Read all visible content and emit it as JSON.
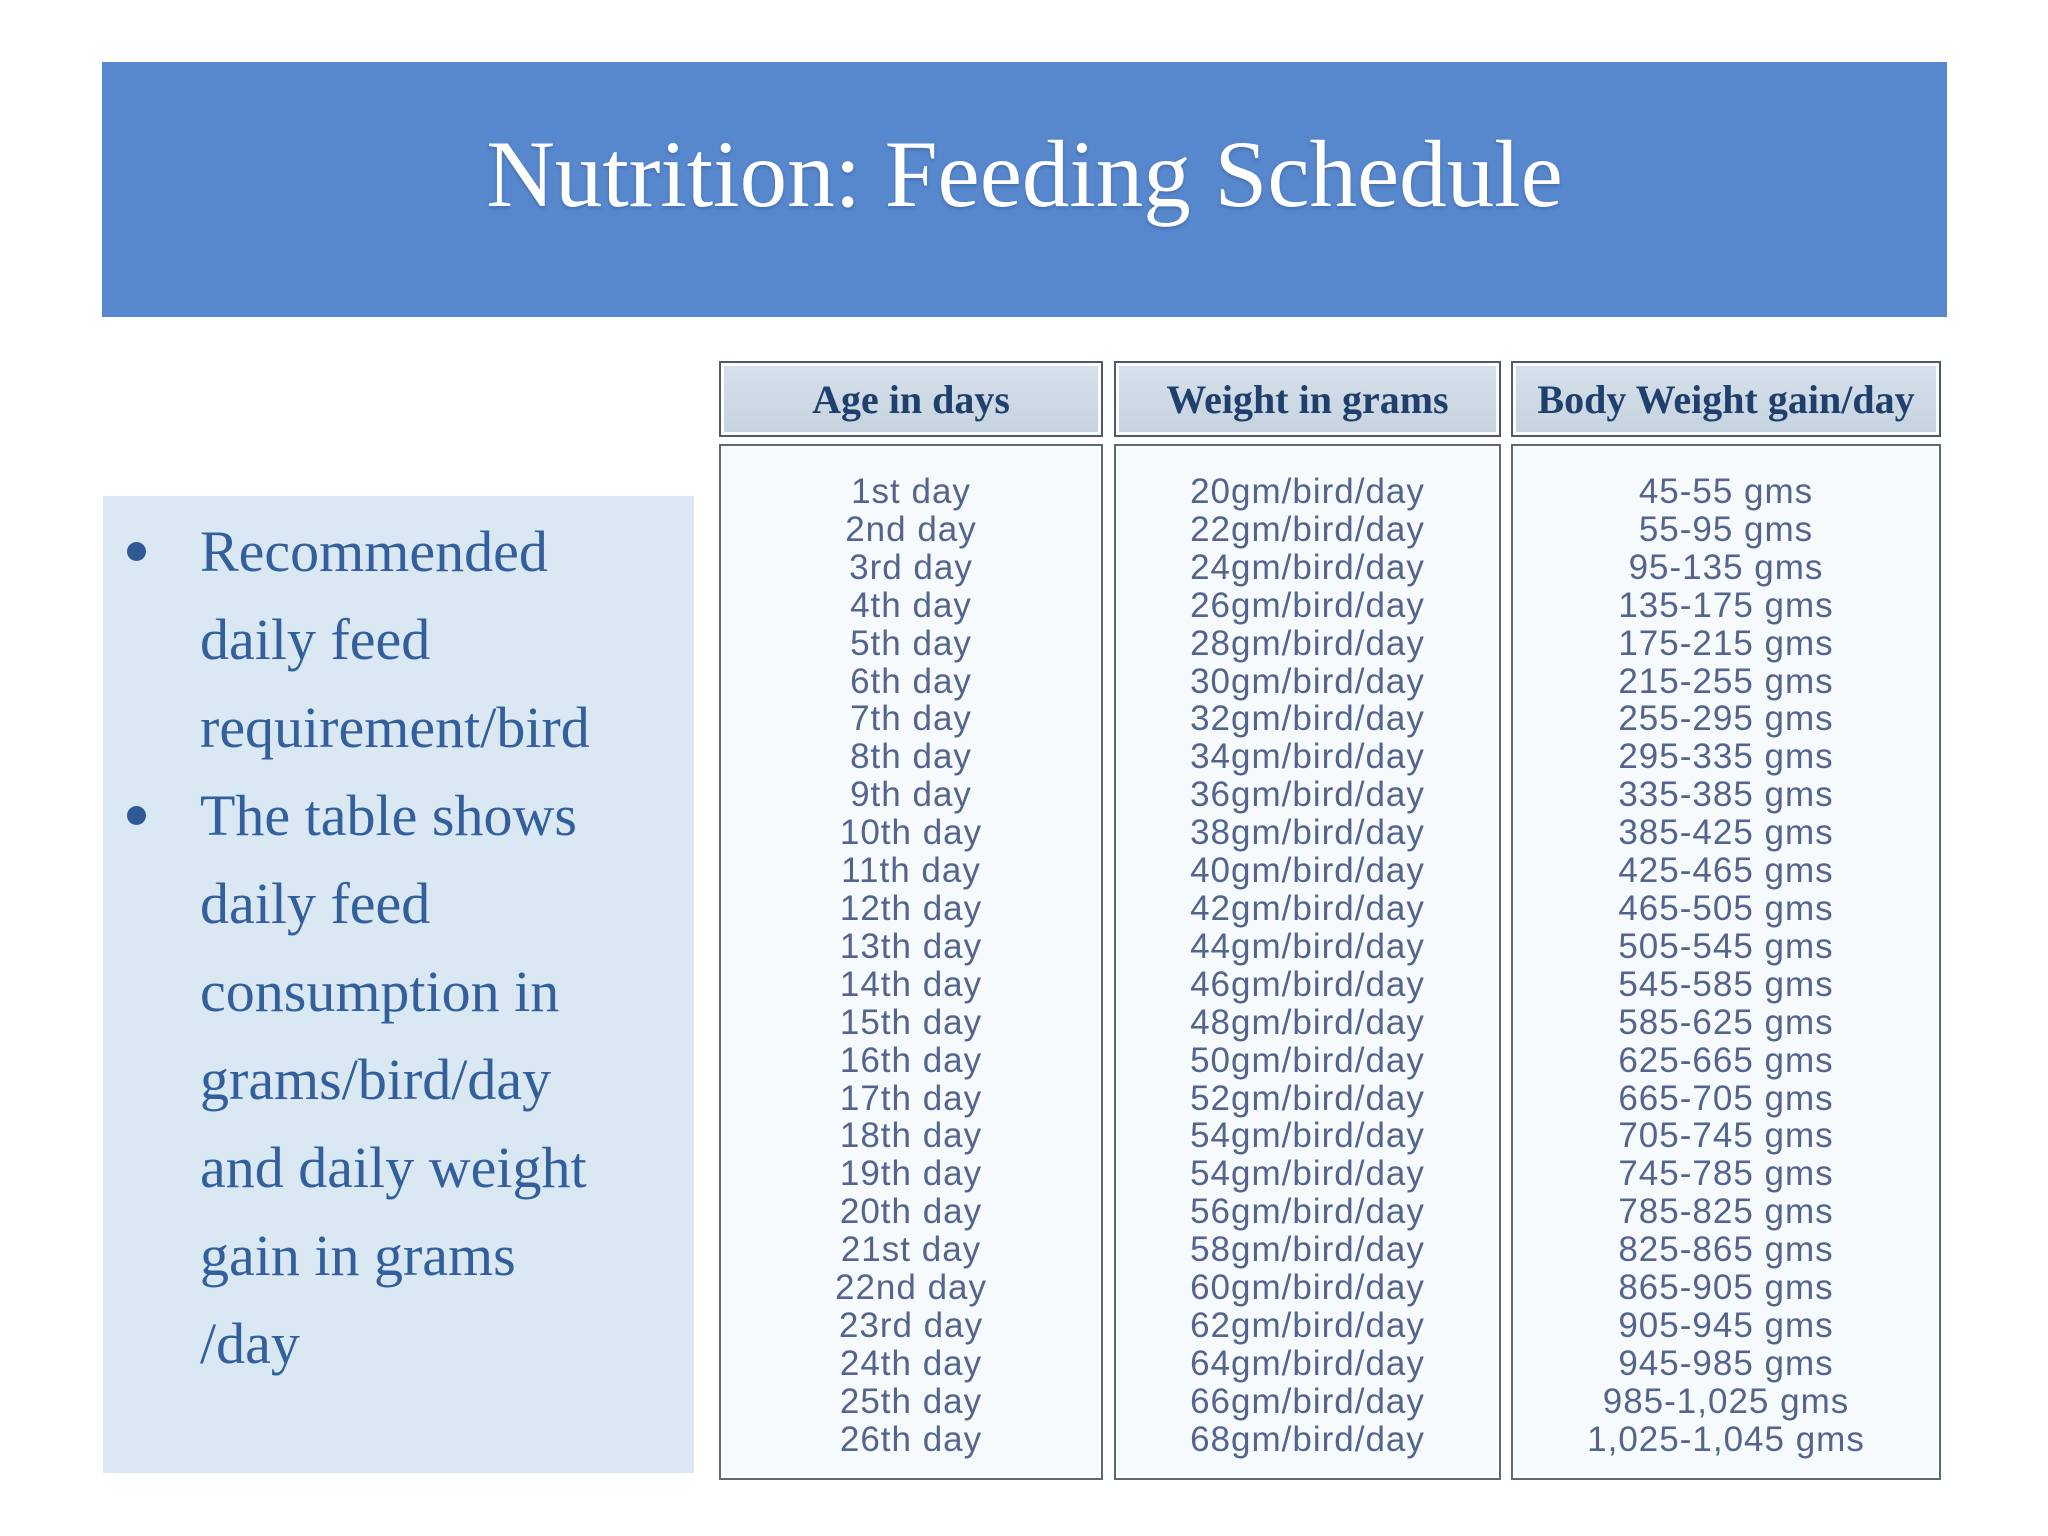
{
  "title": "Nutrition: Feeding Schedule",
  "bullets": [
    {
      "lines": [
        "Recommended",
        "daily feed",
        "requirement/bird"
      ]
    },
    {
      "lines": [
        "The table shows",
        "daily feed",
        "consumption in",
        "grams/bird/day",
        "and daily weight",
        "gain in grams",
        "/day"
      ]
    }
  ],
  "table": {
    "columns": [
      {
        "header": "Age in days",
        "values": [
          "1st day",
          "2nd day",
          "3rd day",
          "4th day",
          "5th day",
          "6th day",
          "7th day",
          "8th day",
          "9th day",
          "10th day",
          "11th day",
          "12th day",
          "13th day",
          "14th day",
          "15th day",
          "16th day",
          "17th day",
          "18th day",
          "19th day",
          "20th day",
          "21st day",
          "22nd day",
          "23rd day",
          "24th day",
          "25th day",
          "26th day"
        ]
      },
      {
        "header": "Weight in grams",
        "values": [
          "20gm/bird/day",
          "22gm/bird/day",
          "24gm/bird/day",
          "26gm/bird/day",
          "28gm/bird/day",
          "30gm/bird/day",
          "32gm/bird/day",
          "34gm/bird/day",
          "36gm/bird/day",
          "38gm/bird/day",
          "40gm/bird/day",
          "42gm/bird/day",
          "44gm/bird/day",
          "46gm/bird/day",
          "48gm/bird/day",
          "50gm/bird/day",
          "52gm/bird/day",
          "54gm/bird/day",
          "54gm/bird/day",
          "56gm/bird/day",
          "58gm/bird/day",
          "60gm/bird/day",
          "62gm/bird/day",
          "64gm/bird/day",
          "66gm/bird/day",
          "68gm/bird/day"
        ]
      },
      {
        "header": "Body Weight gain/day",
        "values": [
          "45-55 gms",
          "55-95 gms",
          "95-135 gms",
          "135-175 gms",
          "175-215 gms",
          "215-255 gms",
          "255-295 gms",
          "295-335 gms",
          "335-385 gms",
          "385-425 gms",
          "425-465 gms",
          "465-505 gms",
          "505-545 gms",
          "545-585 gms",
          "585-625 gms",
          "625-665 gms",
          "665-705 gms",
          "705-745 gms",
          "745-785 gms",
          "785-825 gms",
          "825-865 gms",
          "865-905 gms",
          "905-945 gms",
          "945-985 gms",
          "985-1,025 gms",
          "1,025-1,045 gms"
        ]
      }
    ]
  },
  "colors": {
    "title_band": "#5787cd",
    "title_text": "#ffffff",
    "bullet_box_bg": "#d9e8f2",
    "bullet_text": "#33609c",
    "table_header_bg": "#cdd9e5",
    "table_header_text": "#1f3f6d",
    "table_border": "#5d6975",
    "table_body_bg": "#f7fafc",
    "table_body_text": "#54648c"
  }
}
